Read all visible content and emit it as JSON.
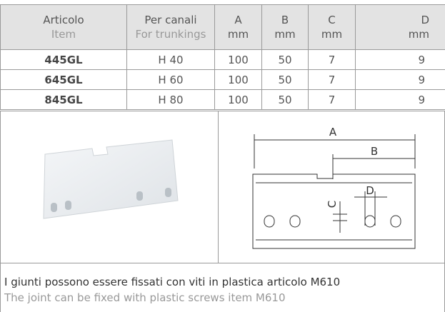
{
  "table": {
    "header": [
      [
        "Articolo",
        "Item"
      ],
      [
        "Per canali",
        "For trunkings"
      ],
      [
        "A",
        "mm"
      ],
      [
        "B",
        "mm"
      ],
      [
        "C",
        "mm"
      ],
      [
        "D",
        "mm"
      ]
    ],
    "rows": [
      [
        "445GL",
        "H 40",
        "100",
        "50",
        "7",
        "9"
      ],
      [
        "645GL",
        "H 60",
        "100",
        "50",
        "7",
        "9"
      ],
      [
        "845GL",
        "H 80",
        "100",
        "50",
        "7",
        "9"
      ]
    ]
  },
  "diagram": {
    "labels": [
      "A",
      "B",
      "C",
      "D"
    ]
  },
  "footer": {
    "line_it": "I giunti possono essere fissati con viti in plastica articolo M610",
    "line_en": "The joint can be fixed with plastic screws item M610"
  }
}
